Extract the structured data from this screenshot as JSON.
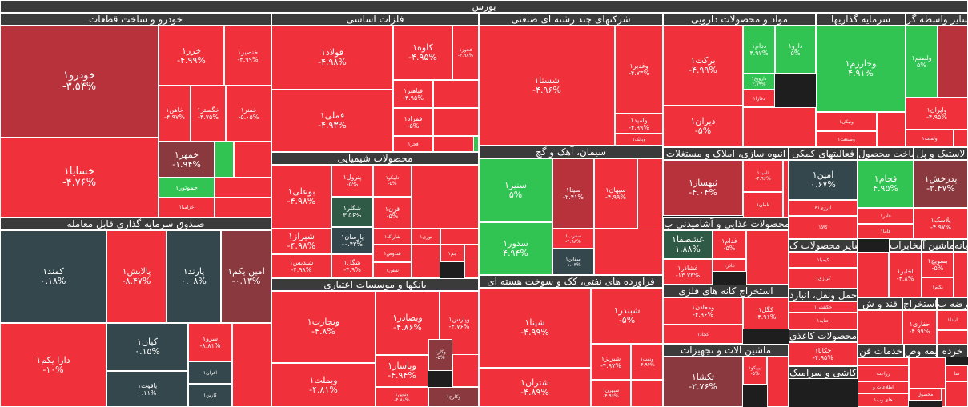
{
  "title": "بورس",
  "colors": {
    "red": "#f0303a",
    "darkred": "#b8323c",
    "maroon": "#8a3a3f",
    "green": "#31c452",
    "darkgreen": "#2f5a45",
    "slate": "#34474c",
    "header": "#3b3b3b"
  },
  "sectors": [
    {
      "id": "s1",
      "label": "خودرو و ساخت قطعات"
    },
    {
      "id": "s2",
      "label": "فلزات اساسی"
    },
    {
      "id": "s3",
      "label": "شرکتهای چند رشته ای صنعتی"
    },
    {
      "id": "s4",
      "label": "مواد و محصولات دارویی"
    },
    {
      "id": "s5",
      "label": "سرمایه گذاریها"
    },
    {
      "id": "s6",
      "label": "سایر واسطه گر"
    },
    {
      "id": "s7",
      "label": "صندوق سرمایه گذاری قابل معامله"
    },
    {
      "id": "s8",
      "label": "محصولات شیمیایی"
    },
    {
      "id": "s9",
      "label": "سیمان، آهک و گچ"
    },
    {
      "id": "s10",
      "label": "انبوه سازی، املاک و مستغلات"
    },
    {
      "id": "s11",
      "label": "فعالیتهای کمکی"
    },
    {
      "id": "s12",
      "label": "ساخت محصول"
    },
    {
      "id": "s13",
      "label": "لاستیک و پل"
    },
    {
      "id": "s14",
      "label": "بانکها و موسسات اعتباری"
    },
    {
      "id": "s15",
      "label": "فراورده های نفتی، کک و سوخت هسته ای"
    },
    {
      "id": "s16",
      "label": "محصولات غذایی و آشامیدنی ب"
    },
    {
      "id": "s17",
      "label": "استخراج کانه های فلزی"
    },
    {
      "id": "s18",
      "label": "ماشین آلات و تجهیزات"
    },
    {
      "id": "s19",
      "label": "سایر محصولات ک"
    },
    {
      "id": "s20",
      "label": "محصولات کاغذی"
    },
    {
      "id": "s21",
      "label": "کاشی و سرامیک"
    },
    {
      "id": "s22",
      "label": "حمل ونقل، انبارد"
    },
    {
      "id": "s23",
      "label": "محصولات ک"
    },
    {
      "id": "s24",
      "label": "مخابرات"
    },
    {
      "id": "s25",
      "label": "ماشین آ"
    },
    {
      "id": "s26",
      "label": "رایانه"
    },
    {
      "id": "s27",
      "label": "عرضه ب"
    },
    {
      "id": "s28",
      "label": "استخراج"
    },
    {
      "id": "s29",
      "label": "قند و ش"
    },
    {
      "id": "s30",
      "label": "خرده"
    },
    {
      "id": "s31",
      "label": "خدمات فن"
    },
    {
      "id": "s32",
      "label": "بیمه وص"
    }
  ],
  "stocks": [
    {
      "id": "t1",
      "name": "خودرو۱",
      "change": "-۳.۵۴%"
    },
    {
      "id": "t2",
      "name": "خسایا۱",
      "change": "-۴.۷۶%"
    },
    {
      "id": "t3",
      "name": "خزر۱",
      "change": "-۴.۹۹%"
    },
    {
      "id": "t4",
      "name": "خنصیر۱",
      "change": "-۴.۹۹%"
    },
    {
      "id": "t5",
      "name": "خاهن۱",
      "change": "-۴.۹۷%"
    },
    {
      "id": "t6",
      "name": "خگستر۱",
      "change": "-۴.۷۵%"
    },
    {
      "id": "t7",
      "name": "خفنر۱",
      "change": "-۵.۰۵%"
    },
    {
      "id": "t8",
      "name": "خمهر۱",
      "change": "-۱.۹۴%"
    },
    {
      "id": "t9",
      "name": "خموتور۱",
      "change": ""
    },
    {
      "id": "t10",
      "name": "خزامیا۱",
      "change": ""
    },
    {
      "id": "t11",
      "name": "فولاد۱",
      "change": "-۴.۹۸%"
    },
    {
      "id": "t12",
      "name": "فملی۱",
      "change": "-۴.۹۳%"
    },
    {
      "id": "t13",
      "name": "کاوه۱",
      "change": "-۴.۹۵%"
    },
    {
      "id": "t14",
      "name": "فخوز۱",
      "change": "-۴.۹۸%"
    },
    {
      "id": "t15",
      "name": "فباهنر۱",
      "change": "-۴.۹۵%"
    },
    {
      "id": "t16",
      "name": "فمراد۱",
      "change": "-۵%"
    },
    {
      "id": "t17",
      "name": "فجر۱",
      "change": ""
    },
    {
      "id": "t18",
      "name": "شستا۱",
      "change": "-۴.۹۶%"
    },
    {
      "id": "t19",
      "name": "وغدیر۱",
      "change": "-۴.۷۳%"
    },
    {
      "id": "t20",
      "name": "وامید۱",
      "change": "-۴.۹۹%"
    },
    {
      "id": "t21",
      "name": "وبانک۱",
      "change": ""
    },
    {
      "id": "t22",
      "name": "برکت۱",
      "change": "-۴.۹۹%"
    },
    {
      "id": "t23",
      "name": "دیران۱",
      "change": "-۵%"
    },
    {
      "id": "t24",
      "name": "ددام۱",
      "change": "۴.۹۷%"
    },
    {
      "id": "t25",
      "name": "دارو۱",
      "change": "۵%"
    },
    {
      "id": "t26",
      "name": "داروپخ۱",
      "change": "۲.۷۹%"
    },
    {
      "id": "t27",
      "name": "دفارا۱",
      "change": ""
    },
    {
      "id": "t28",
      "name": "وخارزم۱",
      "change": "۴.۹۱%"
    },
    {
      "id": "t29",
      "name": "ونیکی۱",
      "change": ""
    },
    {
      "id": "t30",
      "name": "وصنعت۱",
      "change": ""
    },
    {
      "id": "t31",
      "name": "ولصنم۱",
      "change": "۵%"
    },
    {
      "id": "t32",
      "name": "واپران۱",
      "change": "-۴.۹۵%"
    },
    {
      "id": "t33",
      "name": "ولملت۱",
      "change": ""
    },
    {
      "id": "t34",
      "name": "کمند۱",
      "change": "۰.۱۸%"
    },
    {
      "id": "t35",
      "name": "پالایش۱",
      "change": "-۸.۴۷%"
    },
    {
      "id": "t36",
      "name": "پارند۱",
      "change": "۰.۰۸%"
    },
    {
      "id": "t37",
      "name": "امین یکم۱",
      "change": "-۰.۱۳%"
    },
    {
      "id": "t38",
      "name": "دارا یکم۱",
      "change": "-۱۰%"
    },
    {
      "id": "t39",
      "name": "کیان۱",
      "change": "۰.۱۵%"
    },
    {
      "id": "t40",
      "name": "سرو۱",
      "change": "-۸.۸۱%"
    },
    {
      "id": "t41",
      "name": "افران۱",
      "change": ""
    },
    {
      "id": "t42",
      "name": "یاقوت۱",
      "change": "۰.۱۱%"
    },
    {
      "id": "t43",
      "name": "کارین۱",
      "change": ""
    },
    {
      "id": "t44",
      "name": "بوعلی۱",
      "change": "-۴.۹۸%"
    },
    {
      "id": "t45",
      "name": "پترول۱",
      "change": "-۵%"
    },
    {
      "id": "t46",
      "name": "تاپیکو۱",
      "change": "-۵%"
    },
    {
      "id": "t47",
      "name": "شکلر۱",
      "change": "۳.۵۶%"
    },
    {
      "id": "t48",
      "name": "قرن۱",
      "change": "-۵%"
    },
    {
      "id": "t49",
      "name": "شیراز۱",
      "change": "-۴.۹۸%"
    },
    {
      "id": "t50",
      "name": "پارسان۱",
      "change": "-۰.۴۳%"
    },
    {
      "id": "t51",
      "name": "شاراک۱",
      "change": ""
    },
    {
      "id": "t52",
      "name": "نوری۱",
      "change": ""
    },
    {
      "id": "t53",
      "name": "شدوص۱",
      "change": ""
    },
    {
      "id": "t54",
      "name": "جم۱",
      "change": ""
    },
    {
      "id": "t55",
      "name": "شپدیس۱",
      "change": "-۴.۹۸%"
    },
    {
      "id": "t56",
      "name": "شگل۱",
      "change": "-۴.۹%"
    },
    {
      "id": "t57",
      "name": "شفن۱",
      "change": ""
    },
    {
      "id": "t58",
      "name": "سنیر۱",
      "change": "۵%"
    },
    {
      "id": "t59",
      "name": "سدور۱",
      "change": "۴.۹۴%"
    },
    {
      "id": "t60",
      "name": "سیتا۱",
      "change": "-۲.۴۱%"
    },
    {
      "id": "t61",
      "name": "سپهان۱",
      "change": "-۴.۹۹%"
    },
    {
      "id": "t62",
      "name": "سغرب۱",
      "change": "-۴.۹۸%"
    },
    {
      "id": "t63",
      "name": "سقاین۱",
      "change": "-۱.۰۳%"
    },
    {
      "id": "t64",
      "name": "ثبهساز۱",
      "change": "-۴.۰۴%"
    },
    {
      "id": "t65",
      "name": "ثامید۱",
      "change": "-۴.۹۶%"
    },
    {
      "id": "t66",
      "name": "ثامان۱",
      "change": ""
    },
    {
      "id": "t67",
      "name": "امین۱",
      "change": "۰.۶۷%"
    },
    {
      "id": "t68",
      "name": "انرژی۳۱",
      "change": ""
    },
    {
      "id": "t69",
      "name": "کالا۱",
      "change": ""
    },
    {
      "id": "t70",
      "name": "فجام۱",
      "change": "۴.۹۵%"
    },
    {
      "id": "t71",
      "name": "فاذر۱",
      "change": ""
    },
    {
      "id": "t72",
      "name": "فاما۱",
      "change": ""
    },
    {
      "id": "t73",
      "name": "پدرخش۱",
      "change": "-۲.۴۷%"
    },
    {
      "id": "t74",
      "name": "پلاسک۱",
      "change": "-۴.۹۷%"
    },
    {
      "id": "t75",
      "name": "وتجارت۱",
      "change": "-۴.۸%"
    },
    {
      "id": "t76",
      "name": "وبصادر۱",
      "change": "-۴.۸۶%"
    },
    {
      "id": "t77",
      "name": "وپارس۱",
      "change": "-۴.۷۶%"
    },
    {
      "id": "t78",
      "name": "وبملت۱",
      "change": "-۴.۸۱%"
    },
    {
      "id": "t79",
      "name": "وپاسار۱",
      "change": "-۴.۹۴%"
    },
    {
      "id": "t80",
      "name": "وکار۱",
      "change": "-۵%"
    },
    {
      "id": "t81",
      "name": "ونوین۱",
      "change": "-۴.۸۸%"
    },
    {
      "id": "t82",
      "name": "وکارح۱",
      "change": ""
    },
    {
      "id": "t83",
      "name": "شپنا۱",
      "change": "-۴.۹۹%"
    },
    {
      "id": "t84",
      "name": "شبندر۱",
      "change": "-۵%"
    },
    {
      "id": "t85",
      "name": "شتران۱",
      "change": "-۴.۸۹%"
    },
    {
      "id": "t86",
      "name": "شبریز۱",
      "change": "-۴.۹۷%"
    },
    {
      "id": "t87",
      "name": "ونفت۱",
      "change": "-۴.۹۴%"
    },
    {
      "id": "t88",
      "name": "شبهرن۱",
      "change": "-۴.۹۶%"
    },
    {
      "id": "t89",
      "name": "غشصفا۱",
      "change": "۱.۸۸%"
    },
    {
      "id": "t90",
      "name": "غدام۱",
      "change": "-۵%"
    },
    {
      "id": "t91",
      "name": "غاذر۱",
      "change": ""
    },
    {
      "id": "t92",
      "name": "غشاذر۱",
      "change": "-۱۳.۷۳%"
    },
    {
      "id": "t93",
      "name": "ومعادن۱",
      "change": "-۴.۹۶%"
    },
    {
      "id": "t94",
      "name": "کگل۱",
      "change": "-۴.۹۱%"
    },
    {
      "id": "t95",
      "name": "کچاد۱",
      "change": ""
    },
    {
      "id": "t96",
      "name": "تکشا۱",
      "change": "-۲.۷۶%"
    },
    {
      "id": "t97",
      "name": "تیپیکو۱",
      "change": "-۵%"
    },
    {
      "id": "t98",
      "name": "کیمیا۱",
      "change": ""
    },
    {
      "id": "t99",
      "name": "کرازی۱",
      "change": ""
    },
    {
      "id": "t100",
      "name": "حکشتی۱",
      "change": ""
    },
    {
      "id": "t101",
      "name": "حتاید۱",
      "change": ""
    },
    {
      "id": "t102",
      "name": "چکاپا۱",
      "change": "-۴.۹۵%"
    },
    {
      "id": "t103",
      "name": "اخابر۱",
      "change": "-۴.۸%"
    },
    {
      "id": "t104",
      "name": "بسویچ۱",
      "change": "-۵%"
    },
    {
      "id": "t105",
      "name": "بکام۱",
      "change": ""
    },
    {
      "id": "t106",
      "name": "حفاری۱",
      "change": "-۴.۹۹%"
    },
    {
      "id": "t107",
      "name": "آبادا۱",
      "change": ""
    },
    {
      "id": "t108",
      "name": "زراعت",
      "change": ""
    },
    {
      "id": "t109",
      "name": "سا",
      "change": ""
    },
    {
      "id": "t110",
      "name": "اطلاعات و",
      "change": ""
    },
    {
      "id": "t111",
      "name": "محصول",
      "change": ""
    },
    {
      "id": "t112",
      "name": "های وب۱",
      "change": ""
    }
  ]
}
